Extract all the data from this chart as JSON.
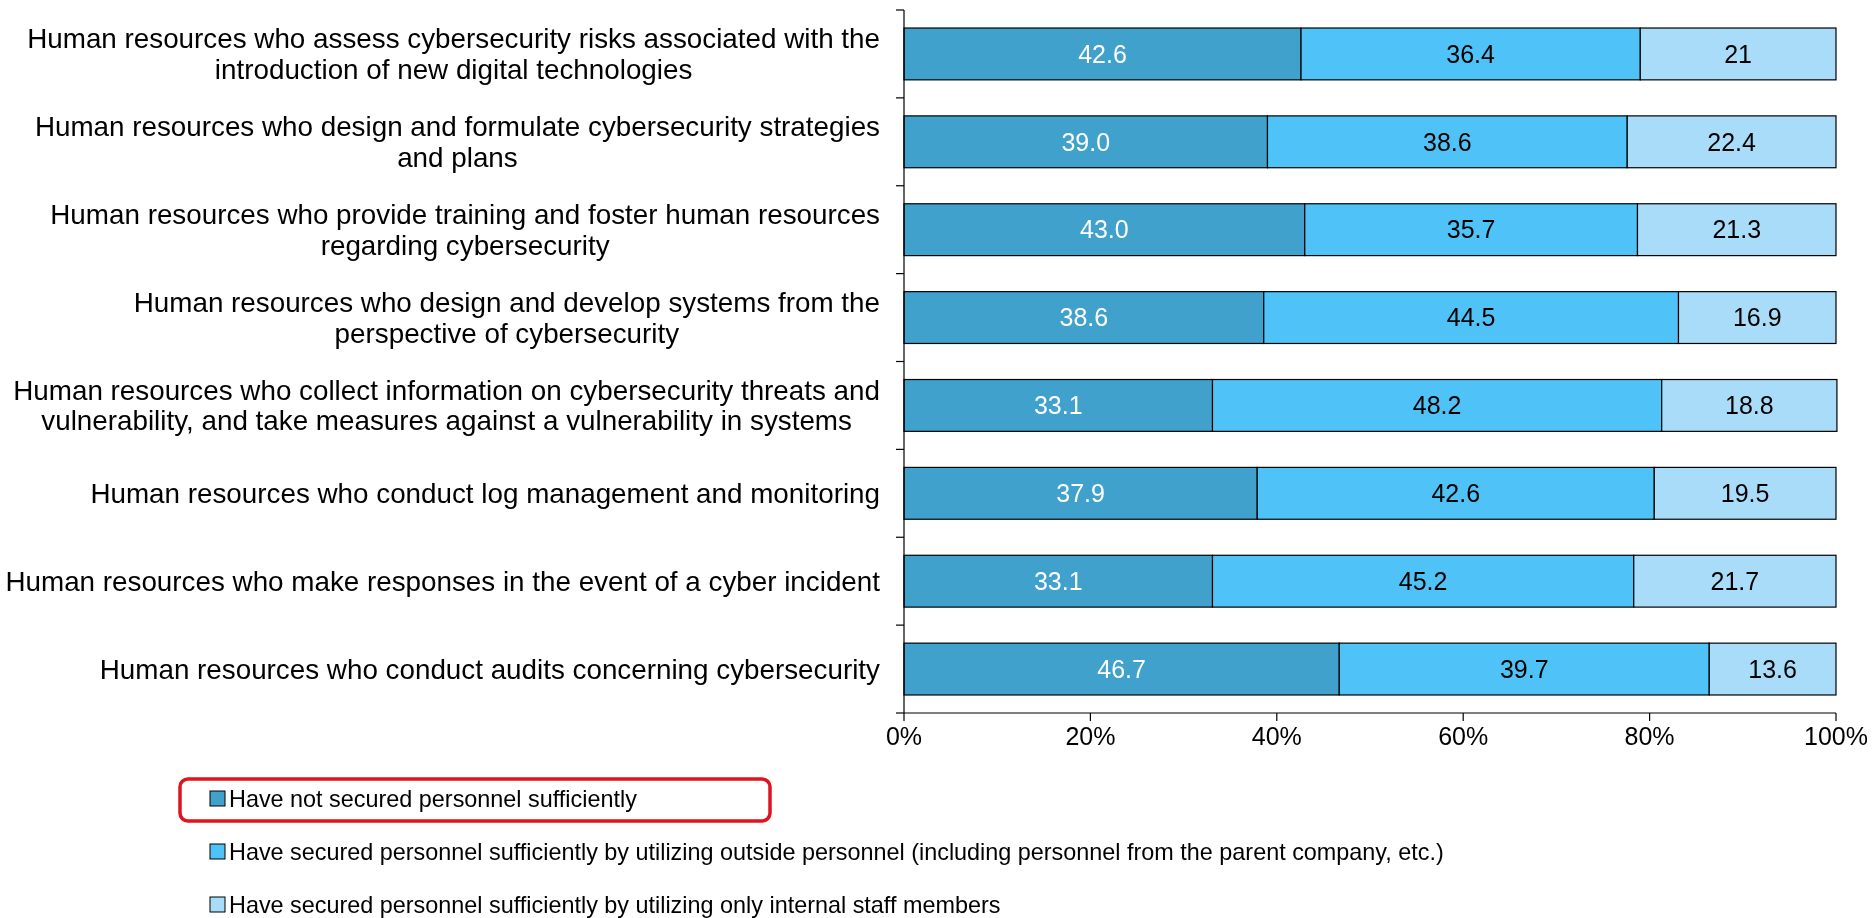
{
  "chart_data": {
    "type": "bar",
    "orientation": "horizontal",
    "stacked": true,
    "categories": [
      "Human resources who assess cybersecurity risks associated with the introduction of new digital technologies",
      "Human resources who design and formulate cybersecurity strategies and plans",
      "Human resources who provide training and foster human resources regarding cybersecurity",
      "Human resources who design and develop systems from the perspective of cybersecurity",
      "Human resources who collect information on cybersecurity threats and vulnerability, and take measures against a vulnerability in systems",
      "Human resources who conduct log management and monitoring",
      "Human resources who make responses in the event of a cyber incident",
      "Human resources who conduct audits concerning cybersecurity"
    ],
    "series": [
      {
        "name": "Have not secured personnel sufficiently",
        "color": "#3fa1cc",
        "values": [
          42.6,
          39.0,
          43.0,
          38.6,
          33.1,
          37.9,
          33.1,
          46.7
        ],
        "value_labels": [
          "42.6",
          "39.0",
          "43.0",
          "38.6",
          "33.1",
          "37.9",
          "33.1",
          "46.7"
        ]
      },
      {
        "name": "Have secured personnel sufficiently by utilizing outside personnel (including personnel from the parent company, etc.)",
        "color": "#4fc3f7",
        "values": [
          36.4,
          38.6,
          35.7,
          44.5,
          48.2,
          42.6,
          45.2,
          39.7
        ],
        "value_labels": [
          "36.4",
          "38.6",
          "35.7",
          "44.5",
          "48.2",
          "42.6",
          "45.2",
          "39.7"
        ]
      },
      {
        "name": "Have secured personnel sufficiently by utilizing only internal staff members",
        "color": "#a9dcf8",
        "values": [
          21,
          22.4,
          21.3,
          16.9,
          18.8,
          19.5,
          21.7,
          13.6
        ],
        "value_labels": [
          "21",
          "22.4",
          "21.3",
          "16.9",
          "18.8",
          "19.5",
          "21.7",
          "13.6"
        ]
      }
    ],
    "xlim": [
      0,
      100
    ],
    "xticks": [
      {
        "value": 0,
        "label": "0%"
      },
      {
        "value": 20,
        "label": "20%"
      },
      {
        "value": 40,
        "label": "40%"
      },
      {
        "value": 60,
        "label": "60%"
      },
      {
        "value": 80,
        "label": "80%"
      },
      {
        "value": 100,
        "label": "100%"
      }
    ],
    "legend": "bottom",
    "grid": false
  }
}
